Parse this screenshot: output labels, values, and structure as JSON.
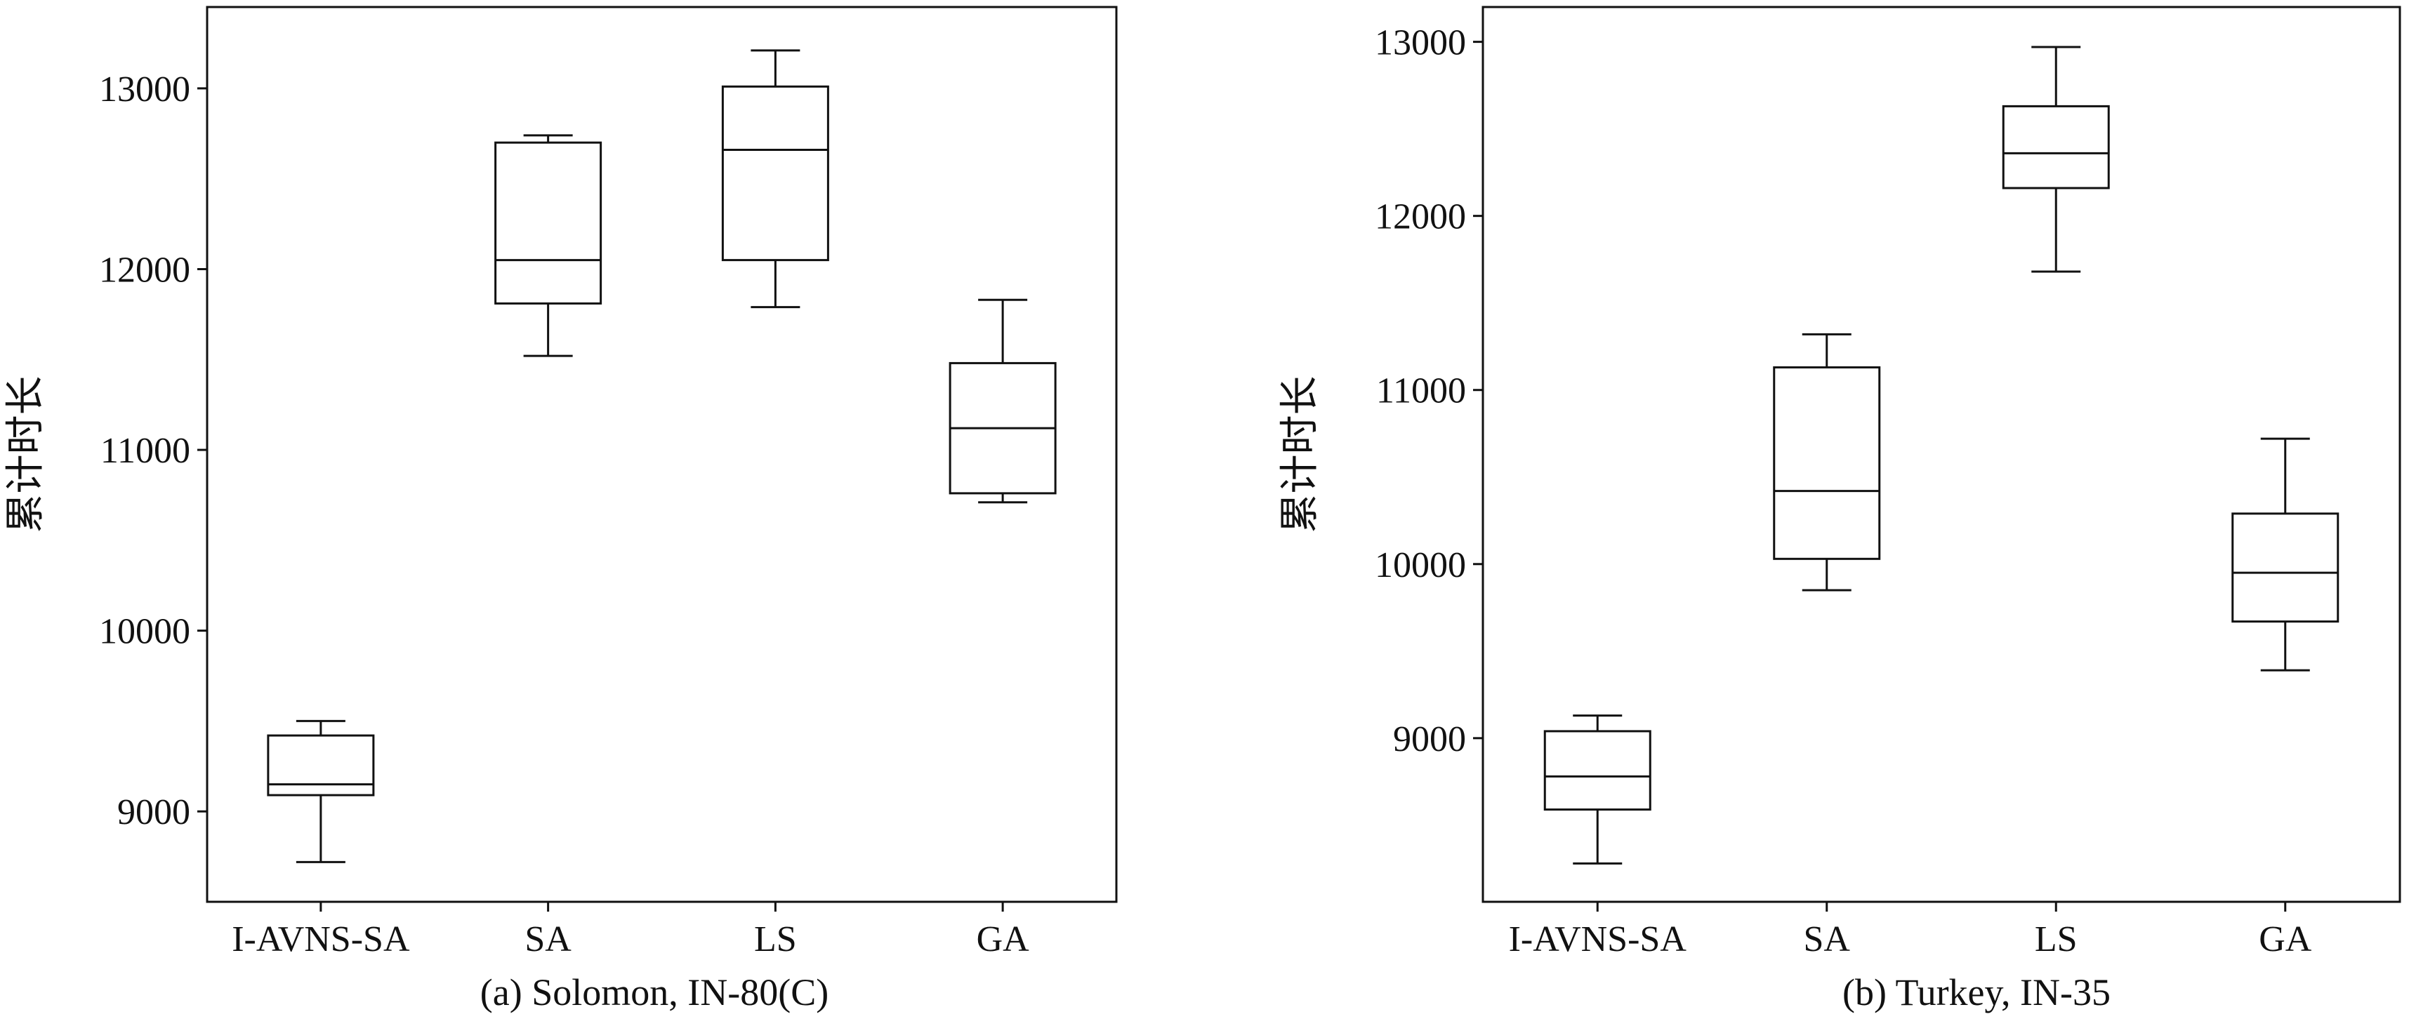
{
  "chart_data": [
    {
      "type": "box",
      "caption": "(a) Solomon, IN-80(C)",
      "ylabel": "累计时长",
      "ylim": [
        8500,
        13450
      ],
      "yticks": [
        9000,
        10000,
        11000,
        12000,
        13000
      ],
      "categories": [
        "I-AVNS-SA",
        "SA",
        "LS",
        "GA"
      ],
      "boxes": [
        {
          "category": "I-AVNS-SA",
          "min": 8720,
          "q1": 9090,
          "median": 9150,
          "q3": 9420,
          "max": 9500
        },
        {
          "category": "SA",
          "min": 11520,
          "q1": 11810,
          "median": 12050,
          "q3": 12700,
          "max": 12740
        },
        {
          "category": "LS",
          "min": 11790,
          "q1": 12050,
          "median": 12660,
          "q3": 13010,
          "max": 13210
        },
        {
          "category": "GA",
          "min": 10710,
          "q1": 10760,
          "median": 11120,
          "q3": 11480,
          "max": 11830
        }
      ]
    },
    {
      "type": "box",
      "caption": "(b) Turkey, IN-35",
      "ylabel": "累计时长",
      "ylim": [
        8060,
        13200
      ],
      "yticks": [
        9000,
        10000,
        11000,
        12000,
        13000
      ],
      "categories": [
        "I-AVNS-SA",
        "SA",
        "LS",
        "GA"
      ],
      "boxes": [
        {
          "category": "I-AVNS-SA",
          "min": 8280,
          "q1": 8590,
          "median": 8780,
          "q3": 9040,
          "max": 9130
        },
        {
          "category": "SA",
          "min": 9850,
          "q1": 10030,
          "median": 10420,
          "q3": 11130,
          "max": 11320
        },
        {
          "category": "LS",
          "min": 11680,
          "q1": 12160,
          "median": 12360,
          "q3": 12630,
          "max": 12970
        },
        {
          "category": "GA",
          "min": 9390,
          "q1": 9670,
          "median": 9950,
          "q3": 10290,
          "max": 10720
        }
      ]
    }
  ]
}
